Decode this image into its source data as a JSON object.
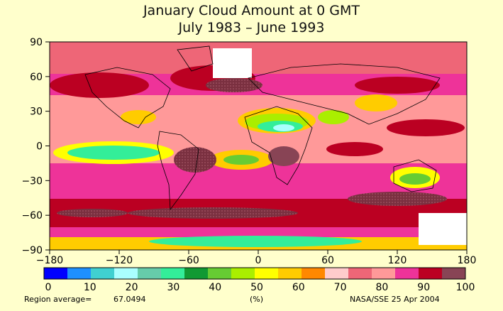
{
  "header": {
    "title_line1": "January Cloud Amount at 0 GMT",
    "title_line2": "July 1983 – June 1993"
  },
  "axes": {
    "y_ticks": [
      "90",
      "60",
      "30",
      "0",
      "−30",
      "−60",
      "−90"
    ],
    "x_ticks": [
      "−180",
      "−120",
      "−60",
      "0",
      "60",
      "120",
      "180"
    ]
  },
  "colorbar": {
    "colors": [
      "#0000ff",
      "#1e90ff",
      "#40d0d0",
      "#aaffff",
      "#66ccaa",
      "#33ee99",
      "#119933",
      "#66cc33",
      "#aaee00",
      "#ffff00",
      "#ffcc00",
      "#ff8800",
      "#ffcccc",
      "#ee6677",
      "#ff9999",
      "#ee3399",
      "#bb0022",
      "#884455"
    ],
    "labels": [
      "0",
      "10",
      "20",
      "30",
      "40",
      "50",
      "60",
      "70",
      "80",
      "90",
      "100"
    ]
  },
  "footer": {
    "region_average_label": "Region average=",
    "region_average_value": "67.0494",
    "unit": "(%)",
    "credit": "NASA/SSE  25 Apr 2004"
  }
}
